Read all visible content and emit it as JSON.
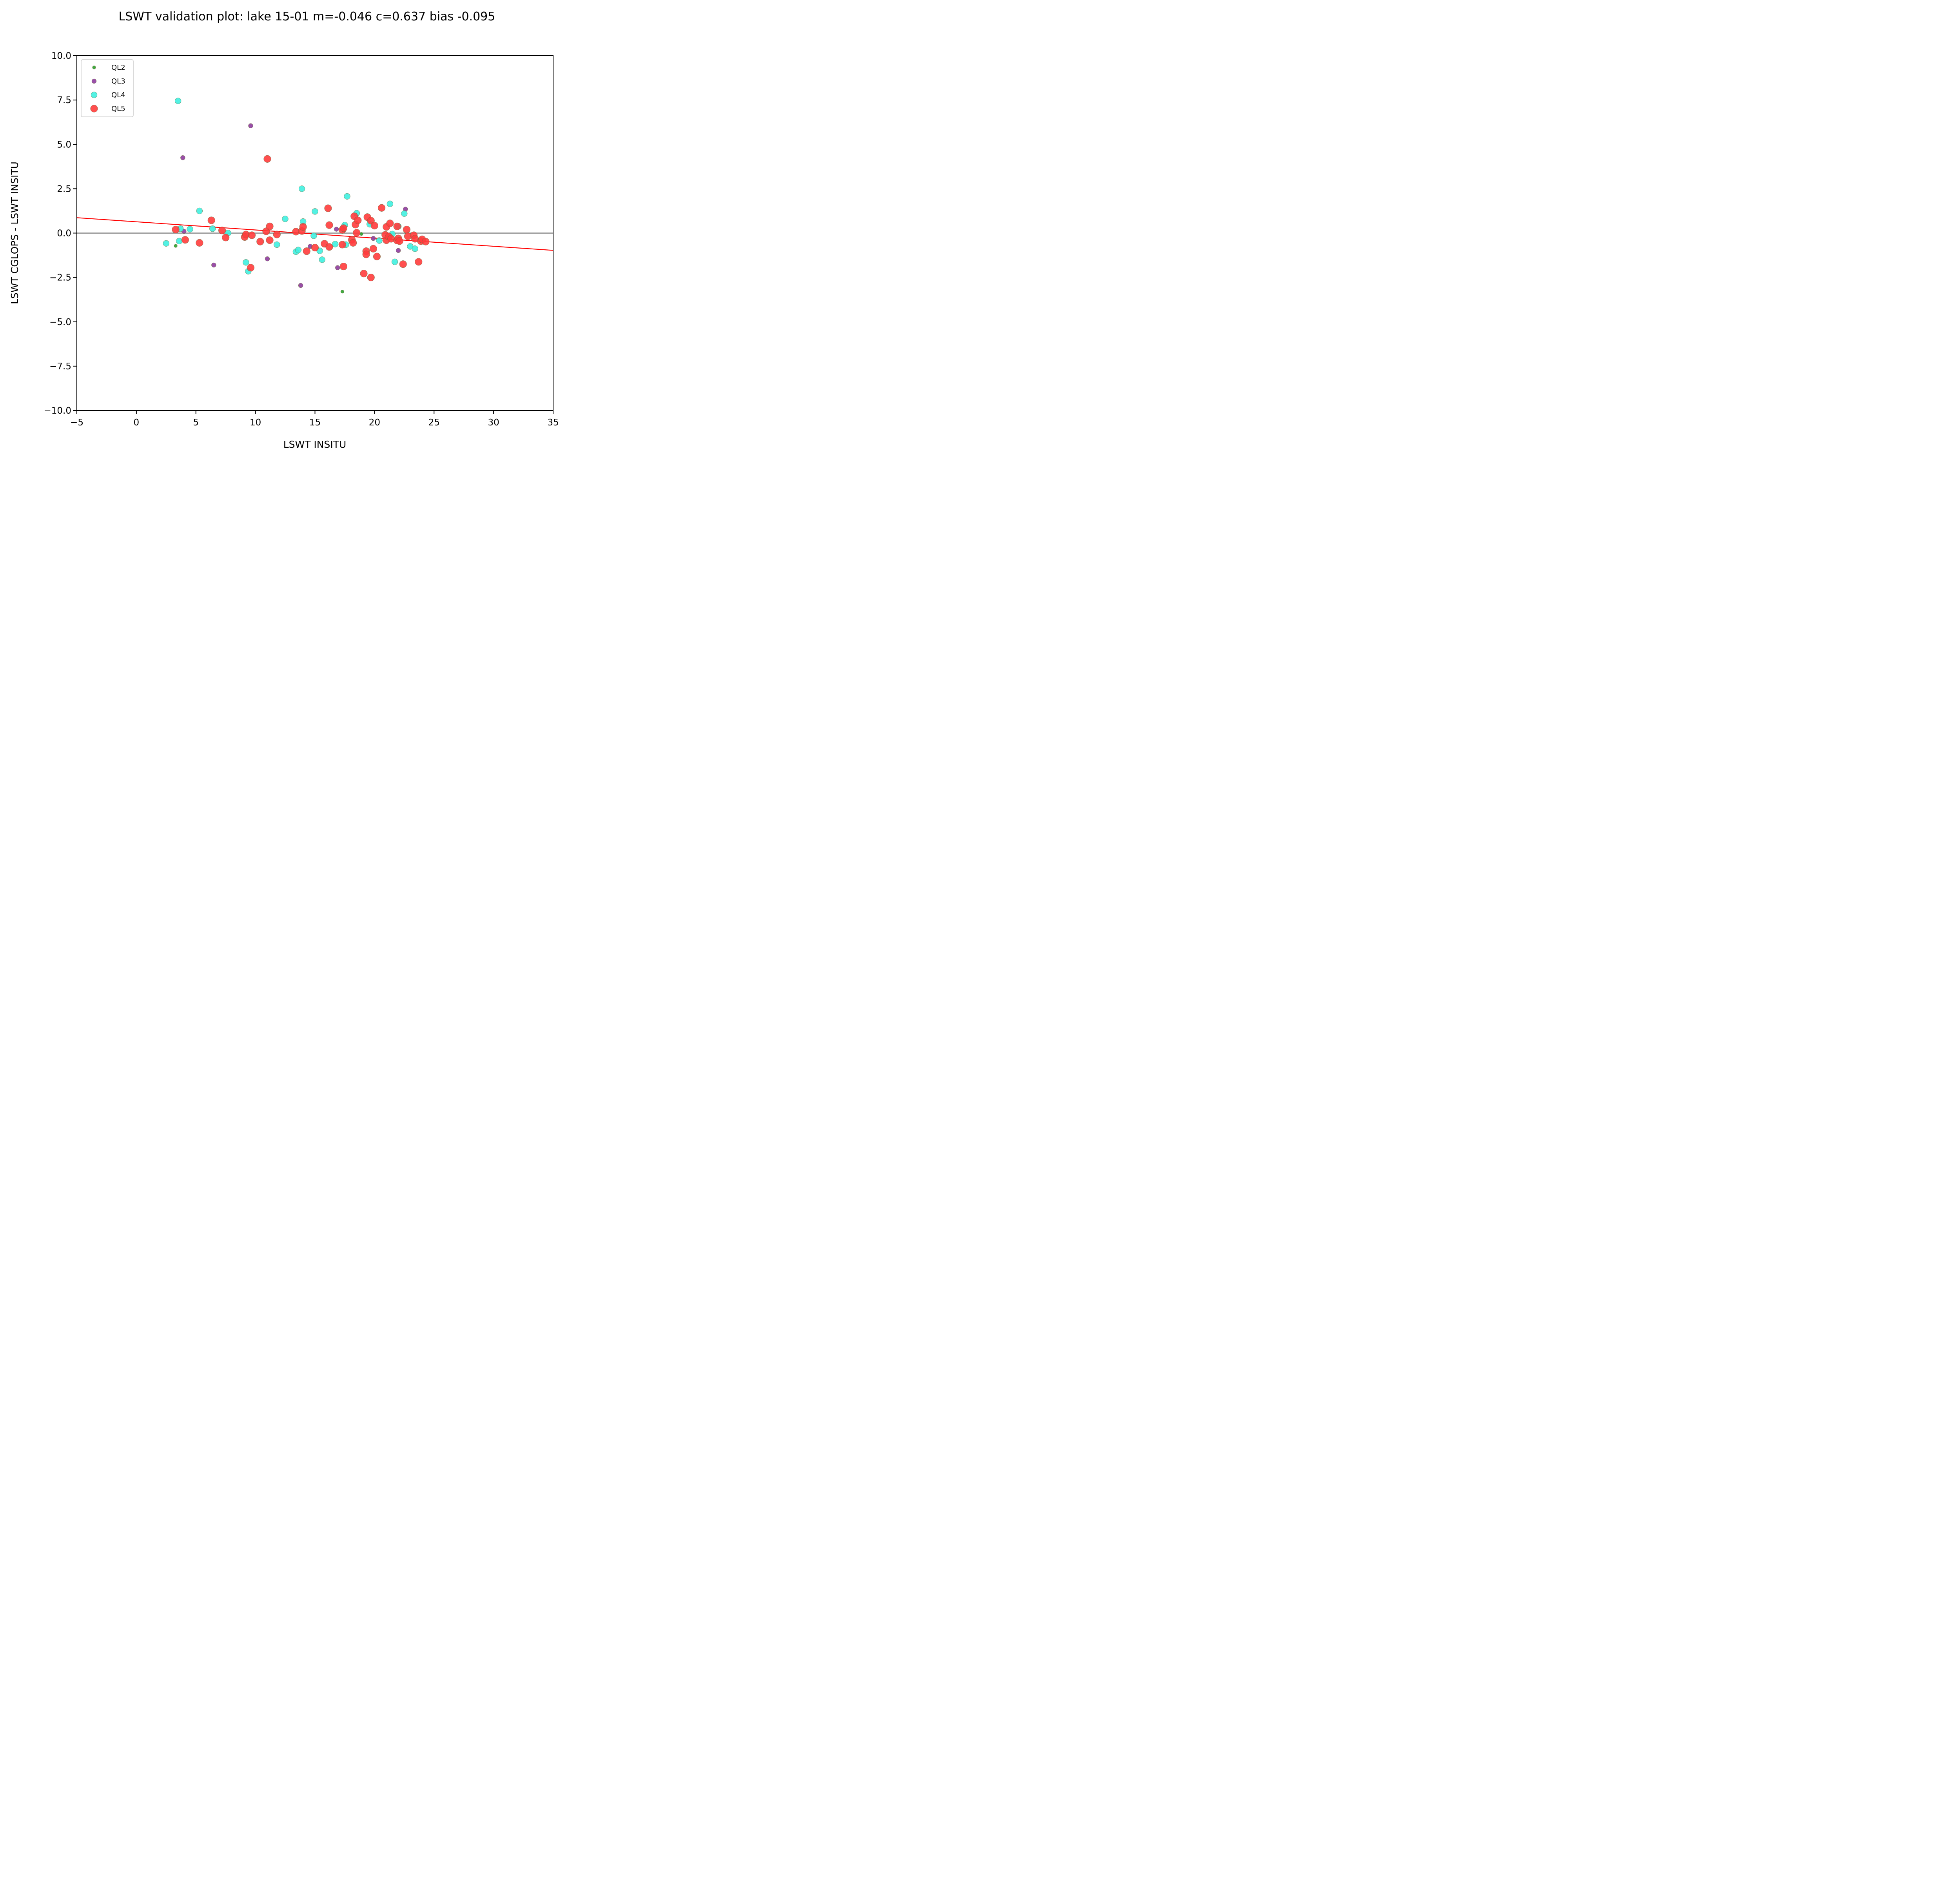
{
  "chart_data": {
    "type": "scatter",
    "title": "LSWT validation plot: lake 15-01 m=-0.046 c=0.637 bias -0.095",
    "xlabel": "LSWT INSITU",
    "ylabel": "LSWT CGLOPS - LSWT INSITU",
    "xlim": [
      -5,
      35
    ],
    "ylim": [
      -10,
      10
    ],
    "xticks": [
      -5,
      0,
      5,
      10,
      15,
      20,
      25,
      30,
      35
    ],
    "yticks": [
      -10,
      -7.5,
      -5,
      -2.5,
      0,
      2.5,
      5,
      7.5,
      10
    ],
    "xtick_labels": [
      "−5",
      "0",
      "5",
      "10",
      "15",
      "20",
      "25",
      "30",
      "35"
    ],
    "ytick_labels": [
      "−10.0",
      "−7.5",
      "−5.0",
      "−2.5",
      "0.0",
      "2.5",
      "5.0",
      "7.5",
      "10.0"
    ],
    "grid": false,
    "legend_position": "top-left",
    "reference_line": {
      "y": 0,
      "color": "#666666"
    },
    "fit_line": {
      "slope": -0.046,
      "intercept": 0.637,
      "color": "#ff0000"
    },
    "series": [
      {
        "name": "QL2",
        "color": "#2ca02c",
        "points": [
          [
            3.3,
            -0.72
          ],
          [
            17.3,
            -3.3
          ],
          [
            18.9,
            -0.05
          ]
        ]
      },
      {
        "name": "QL3",
        "color": "#8e3c9e",
        "points": [
          [
            3.9,
            4.25
          ],
          [
            4.0,
            0.1
          ],
          [
            6.5,
            -1.8
          ],
          [
            9.6,
            6.05
          ],
          [
            11.0,
            -1.45
          ],
          [
            13.8,
            -2.95
          ],
          [
            14.6,
            -0.75
          ],
          [
            16.8,
            0.22
          ],
          [
            16.9,
            -1.95
          ],
          [
            19.9,
            -0.3
          ],
          [
            22.0,
            -0.98
          ],
          [
            22.6,
            1.35
          ]
        ]
      },
      {
        "name": "QL4",
        "color": "#40f0e0",
        "points": [
          [
            2.5,
            -0.58
          ],
          [
            3.5,
            7.45
          ],
          [
            3.6,
            -0.45
          ],
          [
            3.7,
            0.25
          ],
          [
            4.5,
            0.22
          ],
          [
            5.3,
            1.25
          ],
          [
            6.4,
            0.25
          ],
          [
            7.7,
            0.0
          ],
          [
            9.2,
            -1.65
          ],
          [
            9.4,
            -2.15
          ],
          [
            11.8,
            -0.65
          ],
          [
            12.5,
            0.8
          ],
          [
            13.4,
            -1.05
          ],
          [
            13.6,
            -0.95
          ],
          [
            13.9,
            2.5
          ],
          [
            14.0,
            0.65
          ],
          [
            14.9,
            -0.15
          ],
          [
            15.0,
            1.22
          ],
          [
            15.4,
            -1.0
          ],
          [
            15.6,
            -1.5
          ],
          [
            16.7,
            -0.62
          ],
          [
            17.5,
            0.45
          ],
          [
            17.6,
            -0.65
          ],
          [
            17.7,
            2.07
          ],
          [
            18.5,
            1.12
          ],
          [
            19.6,
            0.5
          ],
          [
            20.4,
            -0.42
          ],
          [
            21.3,
            1.65
          ],
          [
            21.5,
            -0.05
          ],
          [
            21.7,
            -1.62
          ],
          [
            22.0,
            0.38
          ],
          [
            22.5,
            1.1
          ],
          [
            23.0,
            -0.75
          ],
          [
            23.4,
            -0.88
          ]
        ]
      },
      {
        "name": "QL5",
        "color": "#ff3c3c",
        "points": [
          [
            3.3,
            0.2
          ],
          [
            4.1,
            -0.38
          ],
          [
            5.3,
            -0.55
          ],
          [
            6.3,
            0.72
          ],
          [
            7.2,
            0.15
          ],
          [
            7.5,
            -0.25
          ],
          [
            9.1,
            -0.22
          ],
          [
            9.2,
            -0.08
          ],
          [
            9.7,
            -0.12
          ],
          [
            9.6,
            -1.95
          ],
          [
            10.4,
            -0.48
          ],
          [
            10.9,
            0.1
          ],
          [
            11.0,
            4.18
          ],
          [
            11.2,
            -0.4
          ],
          [
            11.2,
            0.38
          ],
          [
            11.8,
            -0.08
          ],
          [
            13.4,
            0.08
          ],
          [
            13.9,
            0.12
          ],
          [
            14.0,
            0.35
          ],
          [
            14.3,
            -1.02
          ],
          [
            15.0,
            -0.82
          ],
          [
            15.8,
            -0.6
          ],
          [
            16.1,
            1.4
          ],
          [
            16.2,
            -0.78
          ],
          [
            16.2,
            0.45
          ],
          [
            17.3,
            0.18
          ],
          [
            17.4,
            0.28
          ],
          [
            17.3,
            -0.65
          ],
          [
            17.4,
            -1.88
          ],
          [
            18.1,
            -0.38
          ],
          [
            18.2,
            -0.55
          ],
          [
            18.3,
            0.95
          ],
          [
            18.4,
            0.48
          ],
          [
            18.5,
            0.02
          ],
          [
            18.6,
            0.72
          ],
          [
            19.1,
            -2.28
          ],
          [
            19.3,
            -1.02
          ],
          [
            19.3,
            -1.2
          ],
          [
            19.4,
            0.9
          ],
          [
            19.7,
            0.7
          ],
          [
            19.7,
            -2.5
          ],
          [
            19.9,
            -0.88
          ],
          [
            20.0,
            0.42
          ],
          [
            20.2,
            -1.32
          ],
          [
            20.6,
            1.42
          ],
          [
            20.9,
            -0.1
          ],
          [
            21.0,
            0.35
          ],
          [
            21.0,
            -0.4
          ],
          [
            21.2,
            -0.2
          ],
          [
            21.3,
            0.55
          ],
          [
            21.4,
            -0.32
          ],
          [
            21.9,
            0.38
          ],
          [
            21.9,
            -0.42
          ],
          [
            22.0,
            -0.3
          ],
          [
            22.1,
            -0.45
          ],
          [
            22.4,
            -1.75
          ],
          [
            22.7,
            0.2
          ],
          [
            22.8,
            -0.18
          ],
          [
            23.3,
            -0.12
          ],
          [
            23.4,
            -0.32
          ],
          [
            23.7,
            -1.62
          ],
          [
            23.9,
            -0.45
          ],
          [
            24.0,
            -0.35
          ],
          [
            24.3,
            -0.48
          ]
        ]
      }
    ]
  }
}
